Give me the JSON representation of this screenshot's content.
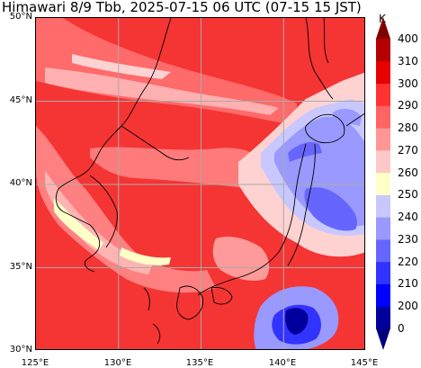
{
  "title": "Himawari 8/9 Tbb, 2025-07-15 06 UTC (07-15 15 JST)",
  "map": {
    "lat_labels": [
      "50°N",
      "45°N",
      "40°N",
      "35°N",
      "30°N"
    ],
    "lon_labels": [
      "125°E",
      "130°E",
      "135°E",
      "140°E",
      "145°E"
    ],
    "lat_range": [
      30,
      50
    ],
    "lon_range": [
      125,
      145
    ]
  },
  "colorbar": {
    "unit": "K",
    "levels": [
      "0",
      "200",
      "210",
      "220",
      "230",
      "240",
      "250",
      "260",
      "270",
      "280",
      "290",
      "300",
      "310",
      "400"
    ],
    "colors": [
      "#00009c",
      "#0000ff",
      "#3333ff",
      "#6666ff",
      "#9999ff",
      "#c8c8ff",
      "#ffffc8",
      "#ffc8c8",
      "#ff9696",
      "#ff6464",
      "#ff3232",
      "#e60000",
      "#b40000"
    ],
    "extend_colors": {
      "low": "#000080",
      "high": "#800000"
    }
  },
  "colors": {
    "warm_background": "#f53030",
    "grid": "#aaaaaa",
    "coastline": "#000000"
  }
}
